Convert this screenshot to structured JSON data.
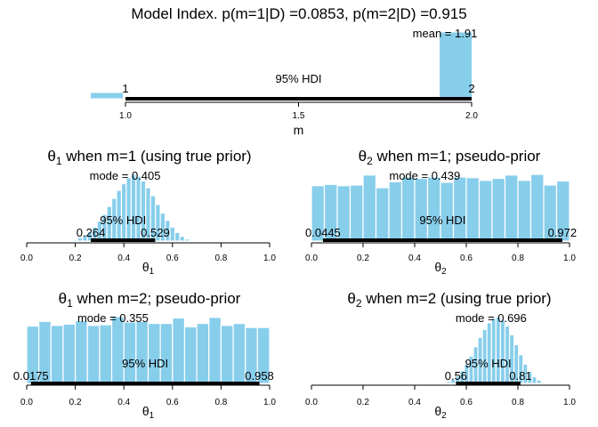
{
  "chart_data": [
    {
      "id": "model",
      "type": "bar",
      "title": "Model Index. p(m=1|D) =0.0853, p(m=2|D) =0.915",
      "xlabel": "m",
      "xlim": [
        1.0,
        2.0
      ],
      "ticks": [
        1.0,
        1.5,
        2.0
      ],
      "tick_labels": [
        "1.0",
        "1.5",
        "2.0"
      ],
      "bars": [
        {
          "x0": 0.95,
          "x1": 1.05,
          "h": 0.0853
        },
        {
          "x0": 1.95,
          "x1": 2.05,
          "h": 0.915
        }
      ],
      "hdi": [
        1,
        2
      ],
      "hdi_low_label": "1",
      "hdi_high_label": "2",
      "hdi_label": "95% HDI",
      "center_label": "mean = 1.91"
    },
    {
      "id": "t1m1",
      "type": "bar",
      "title_main": "θ",
      "title_sub": "1",
      "title_rest": " when m=1 (using true prior)",
      "xlabel_main": "θ",
      "xlabel_sub": "1",
      "xlim": [
        0,
        1
      ],
      "ticks": [
        0,
        0.2,
        0.4,
        0.6,
        0.8,
        1.0
      ],
      "tick_labels": [
        "0.0",
        "0.2",
        "0.4",
        "0.6",
        "0.8",
        "1.0"
      ],
      "bin_start": 0.19,
      "bin_width": 0.02,
      "heights": [
        0.02,
        0.05,
        0.09,
        0.14,
        0.21,
        0.3,
        0.4,
        0.52,
        0.64,
        0.76,
        0.86,
        0.95,
        1.0,
        0.97,
        0.9,
        0.8,
        0.68,
        0.55,
        0.42,
        0.31,
        0.21,
        0.13,
        0.07,
        0.03,
        0.01
      ],
      "hdi": [
        0.264,
        0.529
      ],
      "hdi_low_label": "0.264",
      "hdi_high_label": "0.529",
      "hdi_label": "95% HDI",
      "center_label": "mode = 0.405"
    },
    {
      "id": "t2m1",
      "type": "bar",
      "title_main": "θ",
      "title_sub": "2",
      "title_rest": " when m=1; pseudo-prior",
      "xlabel_main": "θ",
      "xlabel_sub": "2",
      "xlim": [
        0,
        1
      ],
      "ticks": [
        0,
        0.2,
        0.4,
        0.6,
        0.8,
        1.0
      ],
      "tick_labels": [
        "0.0",
        "0.2",
        "0.4",
        "0.6",
        "0.8",
        "1.0"
      ],
      "bin_start": 0.0,
      "bin_width": 0.05,
      "heights": [
        0.83,
        0.85,
        0.83,
        0.84,
        0.99,
        0.8,
        0.89,
        0.96,
        0.94,
        0.96,
        0.88,
        0.96,
        0.95,
        0.91,
        0.94,
        0.99,
        0.91,
        1.0,
        0.84,
        0.9
      ],
      "hdi": [
        0.0445,
        0.972
      ],
      "hdi_low_label": "0.0445",
      "hdi_high_label": "0.972",
      "hdi_label": "95% HDI",
      "center_label": "mode = 0.439"
    },
    {
      "id": "t1m2",
      "type": "bar",
      "title_main": "θ",
      "title_sub": "1",
      "title_rest": " when m=2; pseudo-prior",
      "xlabel_main": "θ",
      "xlabel_sub": "1",
      "xlim": [
        0,
        1
      ],
      "ticks": [
        0,
        0.2,
        0.4,
        0.6,
        0.8,
        1.0
      ],
      "tick_labels": [
        "0.0",
        "0.2",
        "0.4",
        "0.6",
        "0.8",
        "1.0"
      ],
      "bin_start": 0.0,
      "bin_width": 0.05,
      "heights": [
        0.85,
        0.92,
        0.86,
        0.88,
        0.93,
        0.86,
        0.87,
        0.99,
        0.91,
        0.92,
        0.89,
        0.89,
        0.97,
        0.84,
        0.89,
        0.98,
        0.86,
        0.89,
        0.83,
        0.83
      ],
      "hdi": [
        0.0175,
        0.958
      ],
      "hdi_low_label": "0.0175",
      "hdi_high_label": "0.958",
      "hdi_label": "95% HDI",
      "center_label": "mode = 0.355"
    },
    {
      "id": "t2m2",
      "type": "bar",
      "title_main": "θ",
      "title_sub": "2",
      "title_rest": " when m=2 (using true prior)",
      "xlabel_main": "θ",
      "xlabel_sub": "2",
      "xlim": [
        0,
        1
      ],
      "ticks": [
        0,
        0.2,
        0.4,
        0.6,
        0.8,
        1.0
      ],
      "tick_labels": [
        "0.0",
        "0.2",
        "0.4",
        "0.6",
        "0.8",
        "1.0"
      ],
      "bin_start": 0.505,
      "bin_width": 0.0175,
      "heights": [
        0.01,
        0.03,
        0.06,
        0.11,
        0.19,
        0.29,
        0.41,
        0.55,
        0.69,
        0.81,
        0.91,
        0.98,
        1.0,
        0.95,
        0.86,
        0.73,
        0.58,
        0.43,
        0.29,
        0.18,
        0.1,
        0.05,
        0.02
      ],
      "hdi": [
        0.56,
        0.81
      ],
      "hdi_low_label": "0.56",
      "hdi_high_label": "0.81",
      "hdi_label": "95% HDI",
      "center_label": "mode = 0.696"
    }
  ],
  "colors": {
    "bar_fill": "#87ceeb",
    "bar_stroke": "#ffffff",
    "hdi_line": "#000000",
    "axis": "#000000"
  }
}
